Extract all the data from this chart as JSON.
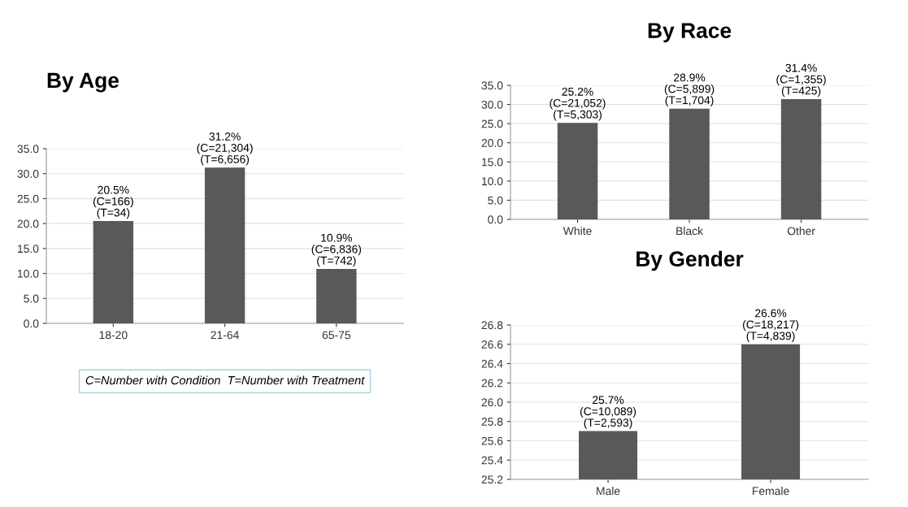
{
  "chart_data": [
    {
      "type": "bar",
      "title": "By Age",
      "categories": [
        "18-20",
        "21-64",
        "65-75"
      ],
      "values": [
        20.5,
        31.2,
        10.9
      ],
      "color": "#595959",
      "value_labels": [
        "20.5%\n(C=166)\n(T=34)",
        "31.2%\n(C=21,304)\n(T=6,656)",
        "10.9%\n(C=6,836)\n(T=742)"
      ],
      "ylim": [
        0,
        35
      ],
      "yticks": [
        {
          "value": 0,
          "label": "0.0"
        },
        {
          "value": 5,
          "label": "5.0"
        },
        {
          "value": 10,
          "label": "10.0"
        },
        {
          "value": 15,
          "label": "15.0"
        },
        {
          "value": 20,
          "label": "20.0"
        },
        {
          "value": 25,
          "label": "25.0"
        },
        {
          "value": 30,
          "label": "30.0"
        },
        {
          "value": 35,
          "label": "35.0"
        }
      ],
      "grid": "y",
      "annotations": [
        "C=Number with Condition  T=Number with Treatment"
      ]
    },
    {
      "type": "bar",
      "title": "By Race",
      "categories": [
        "White",
        "Black",
        "Other"
      ],
      "values": [
        25.2,
        28.9,
        31.4
      ],
      "color": "#595959",
      "value_labels": [
        "25.2%\n(C=21,052)\n(T=5,303)",
        "28.9%\n(C=5,899)\n(T=1,704)",
        "31.4%\n(C=1,355)\n(T=425)"
      ],
      "ylim": [
        0,
        35
      ],
      "yticks": [
        {
          "value": 0,
          "label": "0.0"
        },
        {
          "value": 5,
          "label": "5.0"
        },
        {
          "value": 10,
          "label": "10.0"
        },
        {
          "value": 15,
          "label": "15.0"
        },
        {
          "value": 20,
          "label": "20.0"
        },
        {
          "value": 25,
          "label": "25.0"
        },
        {
          "value": 30,
          "label": "30.0"
        },
        {
          "value": 35,
          "label": "35.0"
        }
      ],
      "grid": "y"
    },
    {
      "type": "bar",
      "title": "By Gender",
      "categories": [
        "Male",
        "Female"
      ],
      "values": [
        25.7,
        26.6
      ],
      "color": "#595959",
      "value_labels": [
        "25.7%\n(C=10,089)\n(T=2,593)",
        "26.6%\n(C=18,217)\n(T=4,839)"
      ],
      "ylim": [
        25.2,
        26.8
      ],
      "yticks": [
        25.2,
        25.4,
        25.6,
        25.8,
        {
          "value": 26,
          "label": "26.0"
        },
        26.2,
        26.4,
        26.6,
        26.8
      ],
      "grid": "y"
    }
  ]
}
